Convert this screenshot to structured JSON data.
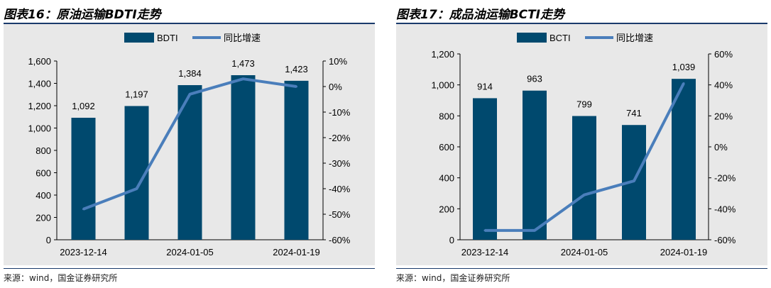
{
  "panels": [
    {
      "title": "图表16：原油运输BDTI走势",
      "source": "来源：wind，国金证券研究所",
      "chart_data": {
        "type": "bar",
        "categories": [
          "2023-12-14",
          "",
          "2024-01-05",
          "",
          "2024-01-19"
        ],
        "series": [
          {
            "name": "BDTI",
            "type": "bar",
            "axis": "left",
            "color": "#00496e",
            "values": [
              1092,
              1197,
              1384,
              1473,
              1423
            ]
          },
          {
            "name": "同比增速",
            "type": "line",
            "axis": "right",
            "color": "#4a7ebb",
            "values": [
              -48,
              -40,
              -3,
              3,
              0
            ]
          }
        ],
        "bar_labels": [
          "1,092",
          "1,197",
          "1,384",
          "1,473",
          "1,423"
        ],
        "left_axis": {
          "min": 0,
          "max": 1600,
          "step": 200,
          "ticks": [
            "0",
            "200",
            "400",
            "600",
            "800",
            "1,000",
            "1,200",
            "1,400",
            "1,600"
          ]
        },
        "right_axis": {
          "min": -60,
          "max": 10,
          "step": 10,
          "ticks": [
            "-60%",
            "-50%",
            "-40%",
            "-30%",
            "-20%",
            "-10%",
            "0%",
            "10%"
          ]
        },
        "legend_position": "top-center"
      }
    },
    {
      "title": "图表17：成品油运输BCTI走势",
      "source": "来源：wind，国金证券研究所",
      "chart_data": {
        "type": "bar",
        "categories": [
          "2023-12-14",
          "",
          "2024-01-05",
          "",
          "2024-01-19"
        ],
        "series": [
          {
            "name": "BCTI",
            "type": "bar",
            "axis": "left",
            "color": "#00496e",
            "values": [
              914,
              963,
              799,
              741,
              1039
            ]
          },
          {
            "name": "同比增速",
            "type": "line",
            "axis": "right",
            "color": "#4a7ebb",
            "values": [
              -54,
              -54,
              -31,
              -22,
              41
            ]
          }
        ],
        "bar_labels": [
          "914",
          "963",
          "799",
          "741",
          "1,039"
        ],
        "left_axis": {
          "min": 0,
          "max": 1200,
          "step": 200,
          "ticks": [
            "0",
            "200",
            "400",
            "600",
            "800",
            "1,000",
            "1,200"
          ]
        },
        "right_axis": {
          "min": -60,
          "max": 60,
          "step": 20,
          "ticks": [
            "-60%",
            "-40%",
            "-20%",
            "0%",
            "20%",
            "40%",
            "60%"
          ]
        },
        "legend_position": "top-center"
      }
    }
  ]
}
